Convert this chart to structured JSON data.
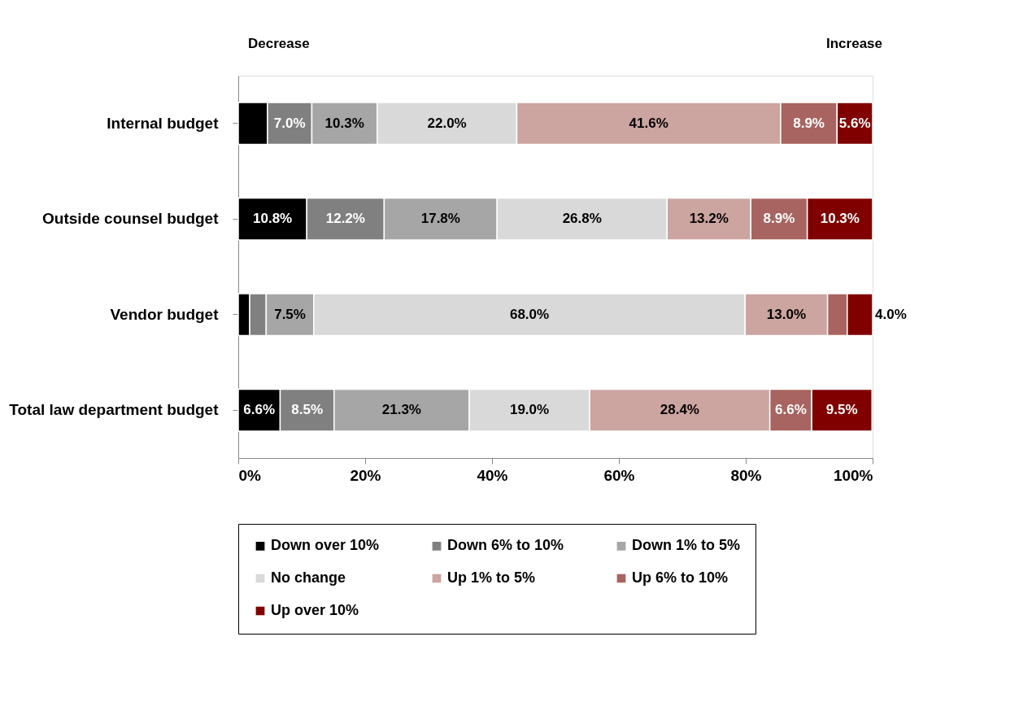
{
  "chart_data": {
    "type": "bar",
    "orientation": "horizontal",
    "stacked": true,
    "categories": [
      "Internal budget",
      "Outside counsel budget",
      "Vendor budget",
      "Total law department budget"
    ],
    "series": [
      {
        "name": "Down over 10%",
        "color": "#000000",
        "values": [
          4.6,
          10.8,
          1.8,
          6.6
        ],
        "value_labels": [
          null,
          "10.8%",
          null,
          "6.6%"
        ]
      },
      {
        "name": "Down 6% to 10%",
        "color": "#808080",
        "values": [
          7.0,
          12.2,
          2.6,
          8.5
        ],
        "value_labels": [
          "7.0%",
          "12.2%",
          null,
          "8.5%"
        ]
      },
      {
        "name": "Down 1% to 5%",
        "color": "#a6a6a6",
        "values": [
          10.3,
          17.8,
          7.5,
          21.3
        ],
        "value_labels": [
          "10.3%",
          "17.8%",
          "7.5%",
          "21.3%"
        ]
      },
      {
        "name": "No change",
        "color": "#d9d9d9",
        "values": [
          22.0,
          26.8,
          68.0,
          19.0
        ],
        "value_labels": [
          "22.0%",
          "26.8%",
          "68.0%",
          "19.0%"
        ]
      },
      {
        "name": "Up 1% to 5%",
        "color": "#cca4a0",
        "values": [
          41.6,
          13.2,
          13.0,
          28.4
        ],
        "value_labels": [
          "41.6%",
          "13.2%",
          "13.0%",
          "28.4%"
        ]
      },
      {
        "name": "Up 6% to 10%",
        "color": "#a86460",
        "values": [
          8.9,
          8.9,
          3.1,
          6.6
        ],
        "value_labels": [
          "8.9%",
          "8.9%",
          null,
          "6.6%"
        ]
      },
      {
        "name": "Up over 10%",
        "color": "#800000",
        "values": [
          5.6,
          10.3,
          4.0,
          9.5
        ],
        "value_labels": [
          "5.6%",
          "10.3%",
          "4.0%",
          "9.5%"
        ]
      }
    ],
    "xlim": [
      0,
      100
    ],
    "xticks": [
      {
        "value": 0,
        "label": "0%"
      },
      {
        "value": 20,
        "label": "20%"
      },
      {
        "value": 40,
        "label": "40%"
      },
      {
        "value": 60,
        "label": "60%"
      },
      {
        "value": 80,
        "label": "80%"
      },
      {
        "value": 100,
        "label": "100%"
      }
    ],
    "grid": false,
    "legend": "bottom",
    "annotations": [
      "Decrease",
      "Increase"
    ]
  }
}
